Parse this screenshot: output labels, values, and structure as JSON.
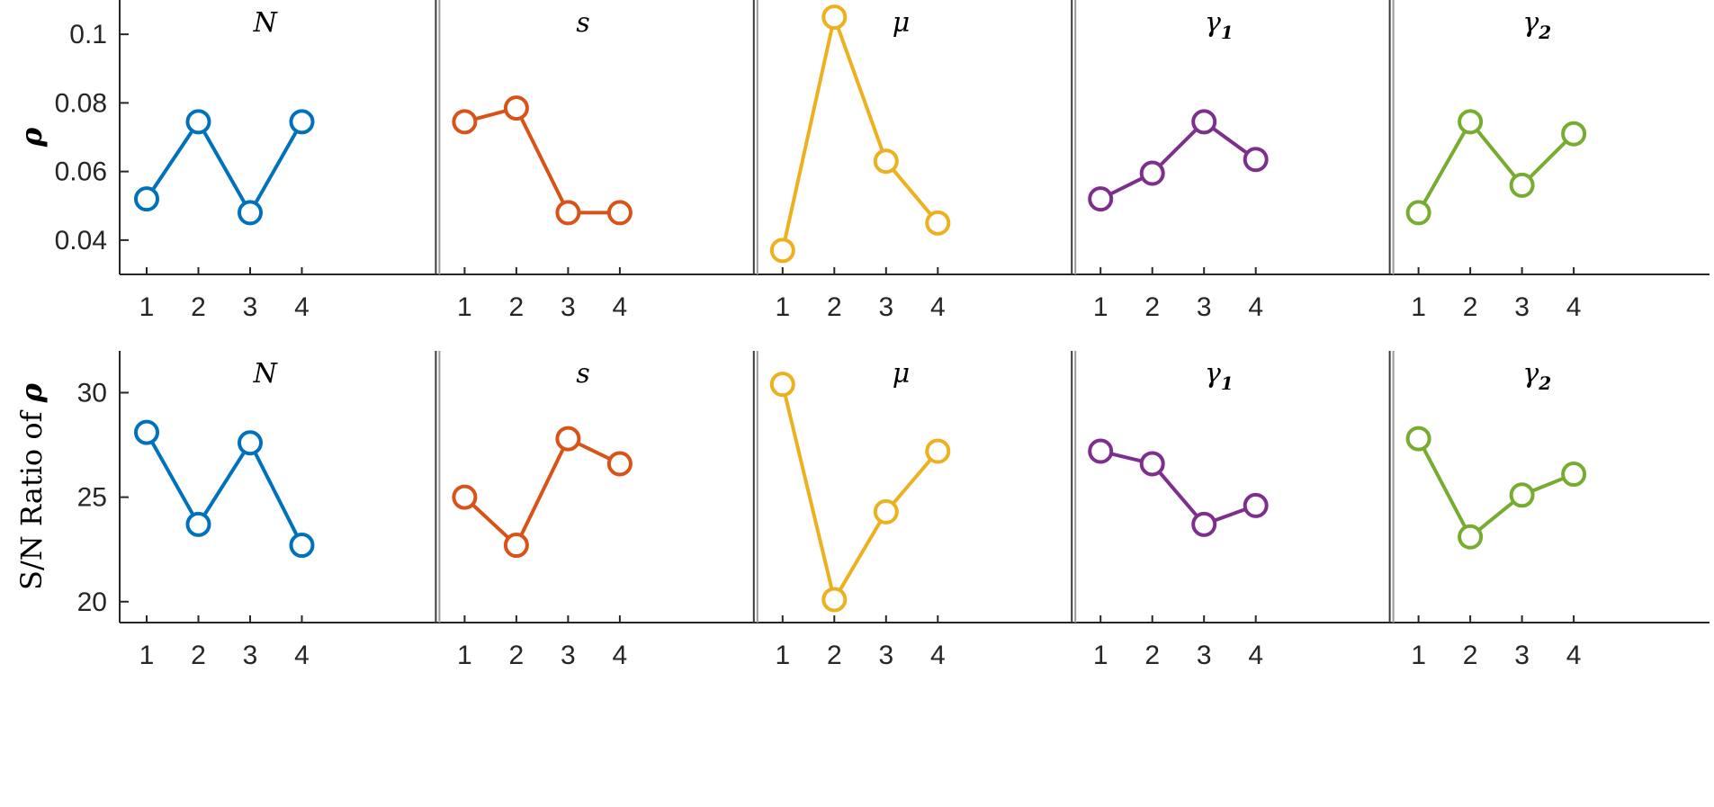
{
  "chart_data": [
    {
      "type": "line",
      "ylabel": {
        "text": "",
        "symbol": "ρ"
      },
      "ylim": [
        0.03,
        0.11
      ],
      "yticks": [
        0.04,
        0.06,
        0.08,
        0.1
      ],
      "ytick_labels": [
        "0.04",
        "0.06",
        "0.08",
        "0.1"
      ],
      "x": [
        1,
        2,
        3,
        4
      ],
      "xtick_labels": [
        "1",
        "2",
        "3",
        "4"
      ],
      "marker": "circle",
      "grid": false,
      "series": [
        {
          "title": {
            "base": "N",
            "sub": ""
          },
          "color": "#0072BD",
          "values": [
            0.052,
            0.0745,
            0.048,
            0.0745
          ]
        },
        {
          "title": {
            "base": "s",
            "sub": ""
          },
          "color": "#D95319",
          "values": [
            0.0745,
            0.0785,
            0.048,
            0.048
          ]
        },
        {
          "title": {
            "base": "μ",
            "sub": ""
          },
          "color": "#EDB120",
          "values": [
            0.037,
            0.105,
            0.063,
            0.045
          ]
        },
        {
          "title": {
            "base": "γ",
            "sub": "1"
          },
          "color": "#7E2F8E",
          "values": [
            0.052,
            0.0595,
            0.0745,
            0.0635
          ]
        },
        {
          "title": {
            "base": "γ",
            "sub": "2"
          },
          "color": "#77AC30",
          "values": [
            0.048,
            0.0745,
            0.056,
            0.071
          ]
        }
      ]
    },
    {
      "type": "line",
      "ylabel": {
        "text": "S/N Ratio of ",
        "symbol": "ρ"
      },
      "ylim": [
        19,
        32
      ],
      "yticks": [
        20,
        25,
        30
      ],
      "ytick_labels": [
        "20",
        "25",
        "30"
      ],
      "x": [
        1,
        2,
        3,
        4
      ],
      "xtick_labels": [
        "1",
        "2",
        "3",
        "4"
      ],
      "marker": "circle",
      "grid": false,
      "series": [
        {
          "title": {
            "base": "N",
            "sub": ""
          },
          "color": "#0072BD",
          "values": [
            28.1,
            23.7,
            27.6,
            22.7
          ]
        },
        {
          "title": {
            "base": "s",
            "sub": ""
          },
          "color": "#D95319",
          "values": [
            25.0,
            22.7,
            27.8,
            26.6
          ]
        },
        {
          "title": {
            "base": "μ",
            "sub": ""
          },
          "color": "#EDB120",
          "values": [
            30.4,
            20.1,
            24.3,
            27.2
          ]
        },
        {
          "title": {
            "base": "γ",
            "sub": "1"
          },
          "color": "#7E2F8E",
          "values": [
            27.2,
            26.6,
            23.7,
            24.6
          ]
        },
        {
          "title": {
            "base": "γ",
            "sub": "2"
          },
          "color": "#77AC30",
          "values": [
            27.8,
            23.1,
            25.1,
            26.1
          ]
        }
      ]
    }
  ]
}
